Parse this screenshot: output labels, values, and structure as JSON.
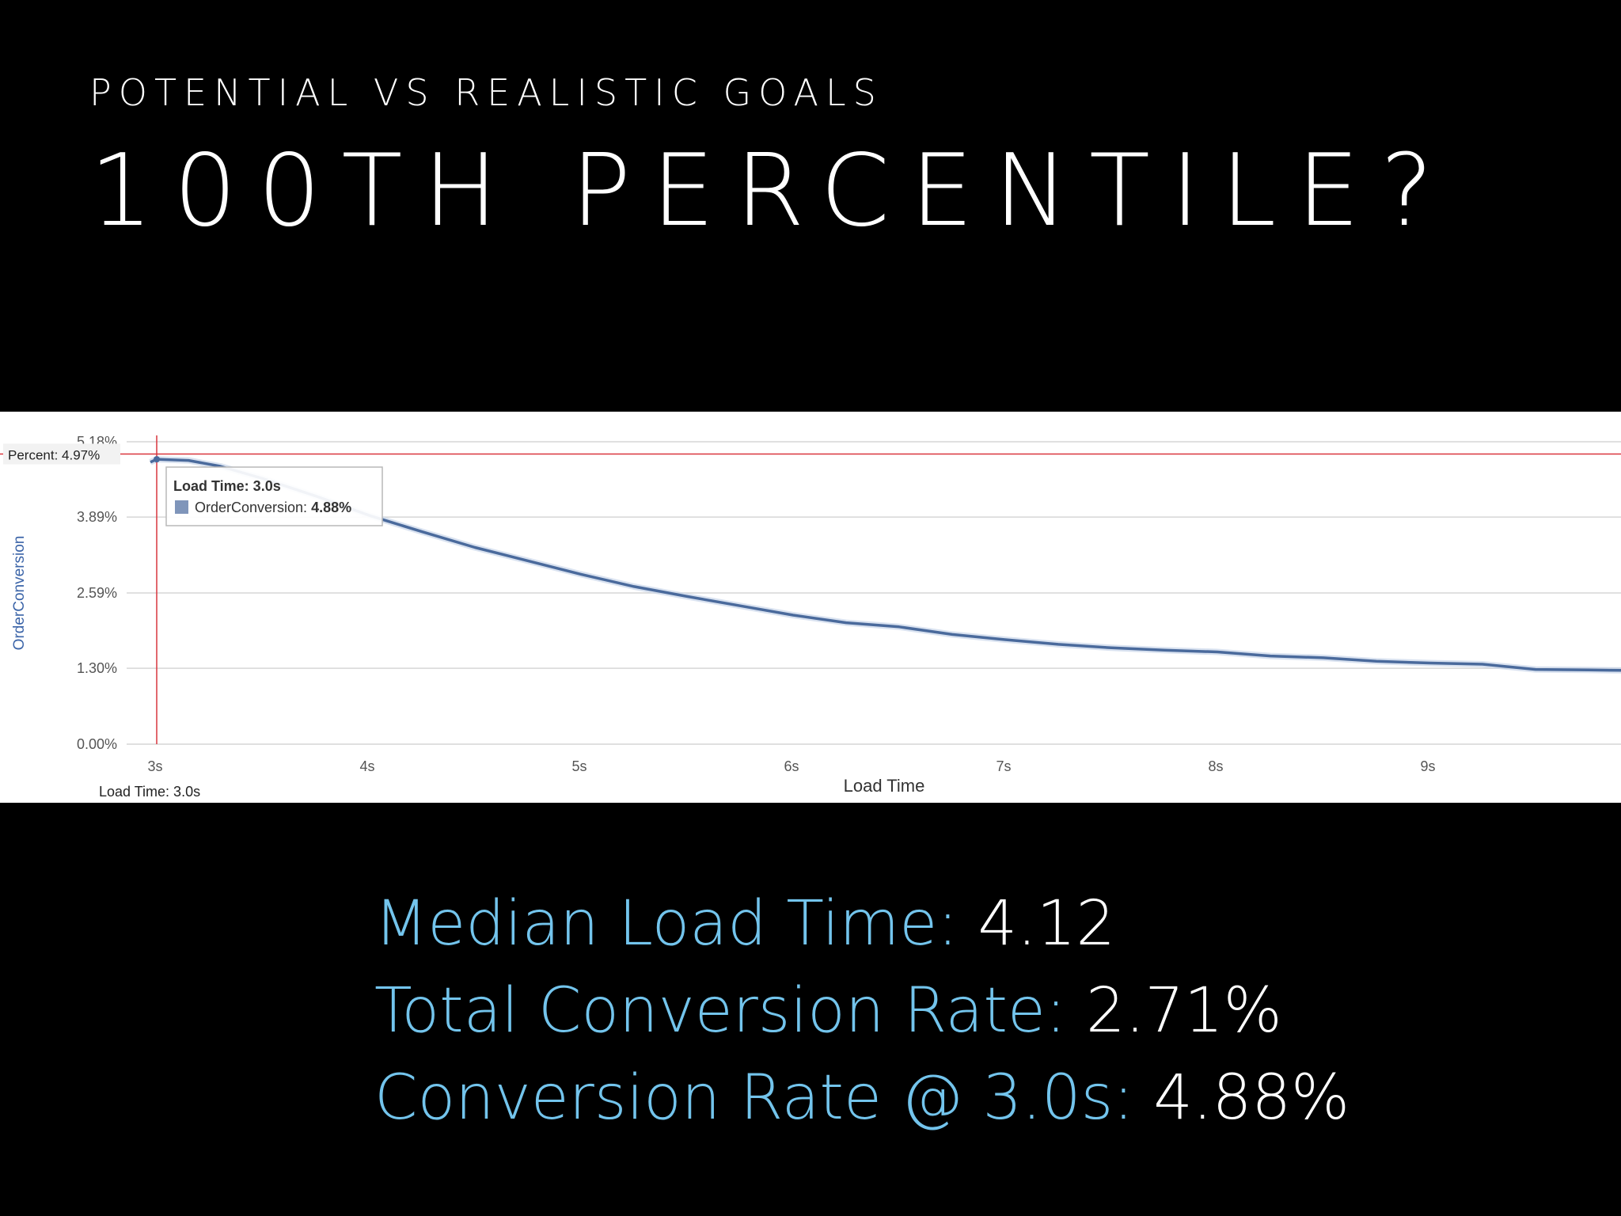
{
  "slide": {
    "subtitle": "POTENTIAL VS REALISTIC GOALS",
    "title": "100TH PERCENTILE?"
  },
  "colors": {
    "background": "#000000",
    "line": "#4a6a9c",
    "crosshair": "#d9363e",
    "stat_label": "#73c4ec",
    "stat_value": "#ffffff"
  },
  "chart_data": {
    "type": "line",
    "xlabel": "Load Time",
    "ylabel": "OrderConversion",
    "x_tick_labels": [
      "3s",
      "4s",
      "5s",
      "6s",
      "7s",
      "8s",
      "9s"
    ],
    "x_ticks": [
      3,
      4,
      5,
      6,
      7,
      8,
      9
    ],
    "y_tick_labels": [
      "0.00%",
      "1.30%",
      "2.59%",
      "3.89%",
      "5.18%"
    ],
    "y_ticks": [
      0,
      1.3,
      2.59,
      3.89,
      5.18
    ],
    "xlim": [
      3,
      10.0
    ],
    "ylim": [
      0,
      5.18
    ],
    "grid": true,
    "series": [
      {
        "name": "OrderConversion",
        "x": [
          2.97,
          3.0,
          3.15,
          3.3,
          3.5,
          3.75,
          4.0,
          4.25,
          4.5,
          4.75,
          5.0,
          5.25,
          5.5,
          5.75,
          6.0,
          6.25,
          6.5,
          6.75,
          7.0,
          7.25,
          7.5,
          7.75,
          8.0,
          8.25,
          8.5,
          8.75,
          9.0,
          9.25,
          9.5,
          9.75,
          10.0
        ],
        "y": [
          4.83,
          4.88,
          4.86,
          4.76,
          4.55,
          4.25,
          3.92,
          3.64,
          3.37,
          3.14,
          2.91,
          2.7,
          2.53,
          2.37,
          2.21,
          2.08,
          2.01,
          1.88,
          1.79,
          1.71,
          1.65,
          1.61,
          1.58,
          1.51,
          1.48,
          1.42,
          1.39,
          1.37,
          1.28,
          1.27,
          1.26
        ]
      }
    ],
    "hover": {
      "load_time": 3.0,
      "percent": 4.97,
      "tooltip_title": "Load Time: 3.0s",
      "tooltip_series": "OrderConversion: ",
      "tooltip_value": "4.88%",
      "y_marker_label": "Percent: 4.97%",
      "x_marker_label": "Load Time: 3.0s"
    }
  },
  "stats": [
    {
      "label": "Median Load Time: ",
      "value": "4.12"
    },
    {
      "label": "Total Conversion Rate: ",
      "value": "2.71%"
    },
    {
      "label": "Conversion Rate @ 3.0s: ",
      "value": "4.88%"
    }
  ]
}
